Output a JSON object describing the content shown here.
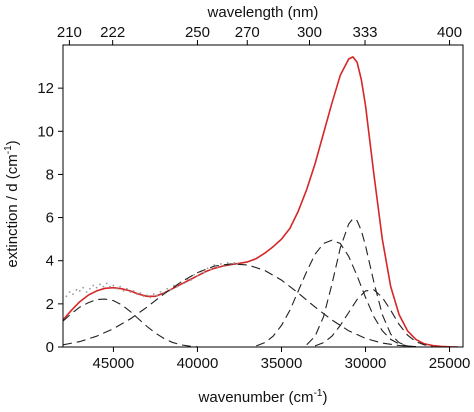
{
  "chart_data": {
    "type": "line",
    "xlabel": "wavenumber (cm",
    "xlabel_sup": "-1",
    "xlabel_close": ")",
    "ylabel": "extinction / d (cm",
    "ylabel_sup": "-1",
    "ylabel_close": ")",
    "top_axis_title": "wavelength (nm)",
    "x_reversed": true,
    "xlim": [
      48000,
      24200
    ],
    "ylim": [
      0,
      14
    ],
    "x_ticks": [
      45000,
      40000,
      35000,
      30000,
      25000
    ],
    "x_tick_labels": [
      "45000",
      "40000",
      "35000",
      "30000",
      "25000"
    ],
    "y_ticks": [
      0,
      2,
      4,
      6,
      8,
      10,
      12
    ],
    "y_tick_labels": [
      "0",
      "2",
      "4",
      "6",
      "8",
      "10",
      "12"
    ],
    "top_ticks_nm": [
      210,
      222,
      250,
      270,
      300,
      333,
      400
    ],
    "top_tick_labels": [
      "210",
      "222",
      "250",
      "270",
      "300",
      "333",
      "400"
    ],
    "grid": false,
    "colors": {
      "fit": "#d62728",
      "components": "#222222",
      "measured": "#9a9a9a",
      "axis": "#000000"
    },
    "series": [
      {
        "style": "red-solid",
        "x": [
          48000,
          47500,
          47000,
          46500,
          46000,
          45500,
          45000,
          44500,
          44000,
          43500,
          43000,
          42500,
          42000,
          41500,
          41000,
          40500,
          40000,
          39500,
          39000,
          38500,
          38000,
          37500,
          37000,
          36500,
          36000,
          35500,
          35000,
          34500,
          34000,
          33500,
          33000,
          32500,
          32000,
          31500,
          31000,
          30750,
          30500,
          30250,
          30000,
          29750,
          29500,
          29000,
          28500,
          28000,
          27500,
          27000,
          26500,
          26000,
          25500,
          25000,
          24500
        ],
        "y": [
          1.25,
          1.7,
          2.1,
          2.4,
          2.6,
          2.72,
          2.75,
          2.7,
          2.6,
          2.45,
          2.35,
          2.35,
          2.5,
          2.7,
          2.9,
          3.1,
          3.3,
          3.5,
          3.65,
          3.75,
          3.82,
          3.88,
          3.95,
          4.1,
          4.35,
          4.65,
          5.0,
          5.5,
          6.3,
          7.3,
          8.5,
          9.9,
          11.3,
          12.6,
          13.35,
          13.45,
          13.2,
          12.4,
          11.2,
          9.6,
          8.0,
          5.0,
          2.8,
          1.5,
          0.75,
          0.35,
          0.15,
          0.07,
          0.03,
          0.01,
          0.0
        ]
      },
      {
        "style": "gray-scatter",
        "x": [
          47800,
          47600,
          47400,
          47200,
          47000,
          46800,
          46600,
          46400,
          46200,
          46000,
          45800,
          45600,
          45400,
          45200,
          45000,
          44800,
          44600,
          44400,
          44200,
          44000,
          43800,
          43600,
          43400,
          43200,
          43000,
          42800,
          42600,
          42400,
          42200,
          42000,
          41800,
          41600,
          41400,
          41200,
          41000,
          40800,
          40600,
          40400,
          40200,
          40000,
          39800,
          39600,
          39400,
          39200,
          39000,
          38800,
          38600,
          38400,
          38200,
          38000,
          37800,
          37600
        ],
        "y": [
          2.35,
          2.55,
          2.45,
          2.65,
          2.6,
          2.75,
          2.55,
          2.7,
          2.85,
          2.75,
          2.9,
          2.8,
          2.95,
          2.8,
          2.85,
          2.7,
          2.8,
          2.6,
          2.7,
          2.55,
          2.6,
          2.45,
          2.5,
          2.35,
          2.4,
          2.3,
          2.45,
          2.4,
          2.55,
          2.5,
          2.7,
          2.65,
          2.85,
          2.8,
          3.0,
          2.95,
          3.15,
          3.1,
          3.35,
          3.3,
          3.5,
          3.45,
          3.65,
          3.6,
          3.8,
          3.7,
          3.85,
          3.75,
          3.9,
          3.8,
          3.9,
          3.85
        ]
      },
      {
        "style": "black-dashed",
        "x": [
          48000,
          47500,
          47000,
          46500,
          46000,
          45500,
          45000,
          44500,
          44000,
          43500,
          43000,
          42500,
          42000,
          41500,
          41000,
          40500,
          40000
        ],
        "y": [
          1.2,
          1.55,
          1.85,
          2.05,
          2.2,
          2.22,
          2.15,
          1.95,
          1.65,
          1.3,
          0.95,
          0.65,
          0.4,
          0.22,
          0.1,
          0.04,
          0.01
        ]
      },
      {
        "style": "black-dashed",
        "x": [
          48000,
          47000,
          46000,
          45000,
          44000,
          43000,
          42000,
          41000,
          40000,
          39000,
          38000,
          37000,
          36000,
          35000,
          34000,
          33000,
          32000,
          31000,
          30000,
          29000,
          28000,
          27000
        ],
        "y": [
          0.1,
          0.25,
          0.5,
          0.85,
          1.3,
          1.85,
          2.45,
          3.0,
          3.45,
          3.75,
          3.85,
          3.8,
          3.55,
          3.1,
          2.5,
          1.85,
          1.25,
          0.75,
          0.4,
          0.18,
          0.07,
          0.02
        ]
      },
      {
        "style": "black-dashed",
        "x": [
          36500,
          36000,
          35500,
          35000,
          34500,
          34000,
          33500,
          33000,
          32500,
          32000,
          31500,
          31000,
          30500,
          30000,
          29500,
          29000,
          28500,
          28000,
          27500,
          27000
        ],
        "y": [
          0.05,
          0.2,
          0.5,
          1.0,
          1.7,
          2.6,
          3.5,
          4.3,
          4.8,
          4.95,
          4.8,
          4.2,
          3.3,
          2.3,
          1.4,
          0.75,
          0.35,
          0.14,
          0.05,
          0.01
        ]
      },
      {
        "style": "black-dashed",
        "x": [
          33500,
          33000,
          32500,
          32000,
          31500,
          31000,
          30750,
          30500,
          30250,
          30000,
          29500,
          29000,
          28500,
          28000,
          27500
        ],
        "y": [
          0.1,
          0.5,
          1.4,
          2.9,
          4.6,
          5.7,
          5.95,
          5.85,
          5.4,
          4.7,
          3.0,
          1.5,
          0.6,
          0.2,
          0.05
        ]
      },
      {
        "style": "black-dashed",
        "x": [
          33000,
          32500,
          32000,
          31500,
          31000,
          30500,
          30000,
          29500,
          29000,
          28500,
          28000,
          27500,
          27000,
          26500,
          26000
        ],
        "y": [
          0.05,
          0.2,
          0.5,
          1.0,
          1.6,
          2.2,
          2.6,
          2.65,
          2.3,
          1.7,
          1.05,
          0.55,
          0.25,
          0.1,
          0.03
        ]
      }
    ]
  }
}
